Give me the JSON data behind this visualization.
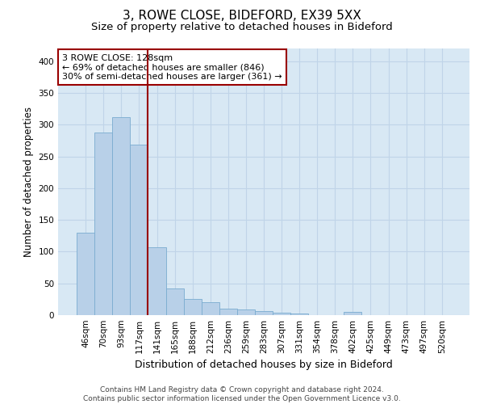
{
  "title_line1": "3, ROWE CLOSE, BIDEFORD, EX39 5XX",
  "title_line2": "Size of property relative to detached houses in Bideford",
  "xlabel": "Distribution of detached houses by size in Bideford",
  "ylabel": "Number of detached properties",
  "categories": [
    "46sqm",
    "70sqm",
    "93sqm",
    "117sqm",
    "141sqm",
    "165sqm",
    "188sqm",
    "212sqm",
    "236sqm",
    "259sqm",
    "283sqm",
    "307sqm",
    "331sqm",
    "354sqm",
    "378sqm",
    "402sqm",
    "425sqm",
    "449sqm",
    "473sqm",
    "497sqm",
    "520sqm"
  ],
  "values": [
    130,
    288,
    312,
    268,
    107,
    42,
    25,
    21,
    10,
    9,
    7,
    4,
    3,
    0,
    0,
    5,
    0,
    0,
    0,
    0,
    0
  ],
  "bar_color": "#b8d0e8",
  "bar_edge_color": "#7aacd0",
  "vline_x": 3.5,
  "vline_color": "#990000",
  "annotation_text": "3 ROWE CLOSE: 128sqm\n← 69% of detached houses are smaller (846)\n30% of semi-detached houses are larger (361) →",
  "annotation_box_color": "#ffffff",
  "annotation_box_edge": "#990000",
  "ylim": [
    0,
    420
  ],
  "yticks": [
    0,
    50,
    100,
    150,
    200,
    250,
    300,
    350,
    400
  ],
  "grid_color": "#c0d4e8",
  "background_color": "#d8e8f4",
  "footer_text": "Contains HM Land Registry data © Crown copyright and database right 2024.\nContains public sector information licensed under the Open Government Licence v3.0.",
  "title_fontsize": 11,
  "subtitle_fontsize": 9.5,
  "xlabel_fontsize": 9,
  "ylabel_fontsize": 8.5,
  "tick_fontsize": 7.5,
  "annotation_fontsize": 8,
  "footer_fontsize": 6.5
}
